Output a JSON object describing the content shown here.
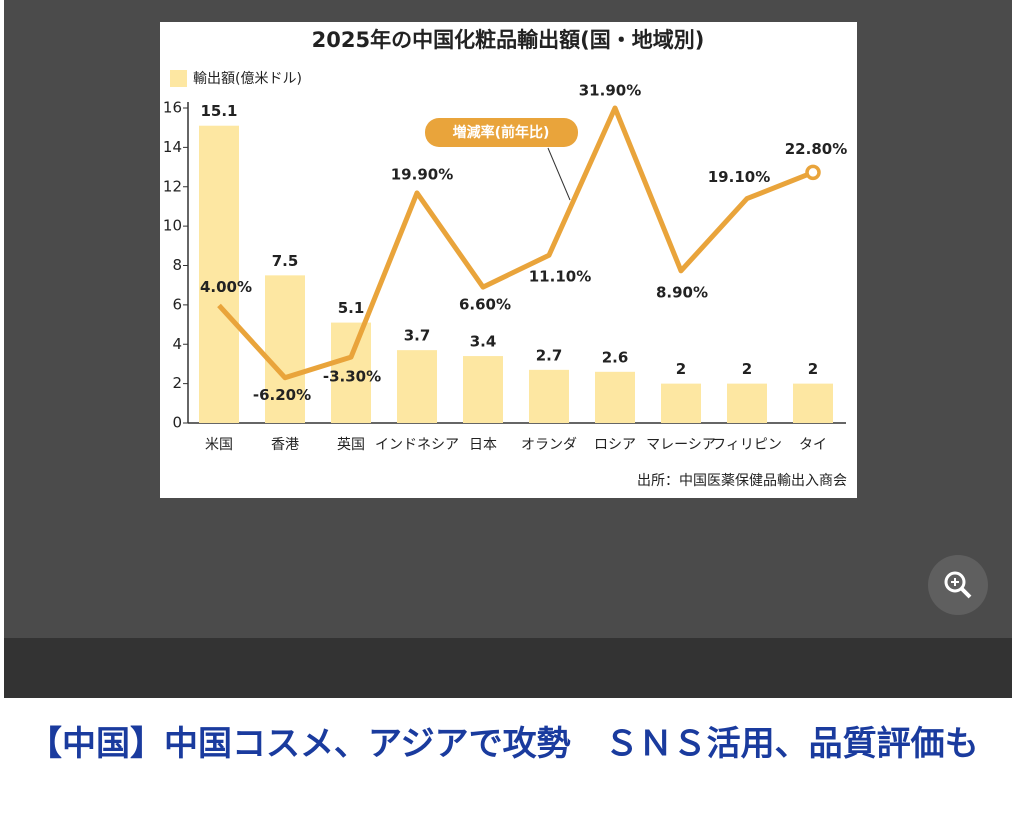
{
  "chart_data": {
    "type": "bar",
    "title": "2025年の中国化粧品輸出額(国・地域別)",
    "categories": [
      "米国",
      "香港",
      "英国",
      "インドネシア",
      "日本",
      "オランダ",
      "ロシア",
      "マレーシア",
      "フィリピン",
      "タイ"
    ],
    "series": [
      {
        "name": "輸出額(億米ドル)",
        "color": "#fde7a2",
        "values": [
          15.1,
          7.5,
          5.1,
          3.7,
          3.4,
          2.7,
          2.6,
          2,
          2,
          2
        ]
      },
      {
        "name": "増減率(前年比)",
        "type": "line",
        "axis": "y2",
        "color": "#e9a43b",
        "values": [
          4.0,
          -6.2,
          -3.3,
          19.9,
          6.6,
          11.1,
          31.9,
          8.9,
          19.1,
          22.8
        ],
        "value_labels": [
          "4.00%",
          "-6.20%",
          "-3.30%",
          "19.90%",
          "6.60%",
          "11.10%",
          "31.90%",
          "8.90%",
          "19.10%",
          "22.80%"
        ]
      }
    ],
    "ylim": [
      0,
      16
    ],
    "yticks": [
      0,
      2,
      4,
      6,
      8,
      10,
      12,
      14,
      16
    ],
    "y2lim": [
      -12.6,
      31.9
    ],
    "source": "出所：中国医薬保健品輸出入商会"
  },
  "headline": "【中国】中国コスメ、アジアで攻勢　ＳＮＳ活用、品質評価も"
}
